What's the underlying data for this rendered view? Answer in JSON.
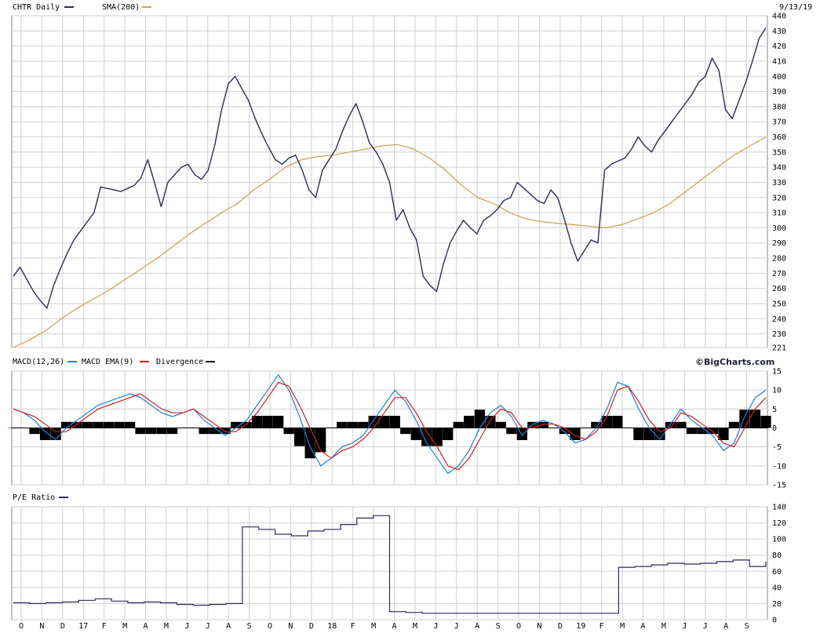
{
  "header": {
    "symbol_label": "CHTR Daily",
    "sma_label": "SMA(200)",
    "date_label": "9/13/19"
  },
  "macd_panel": {
    "macd_label": "MACD(12,26)",
    "ema_label": "MACD EMA(9)",
    "divergence_label": "Divergence",
    "brand": "©BigCharts.com"
  },
  "pe_panel": {
    "label": "P/E Ratio"
  },
  "colors": {
    "price": "#2b2b5c",
    "sma": "#c8a050",
    "macd": "#1e7fe0",
    "ema": "#d02020",
    "divergence": "#000000",
    "pe": "#2b2b5c",
    "grid": "#cfcfcf"
  },
  "chart_data": [
    {
      "type": "line",
      "panel": "price",
      "ylim": [
        221,
        440
      ],
      "y_ticks": [
        "440",
        "430",
        "420",
        "410",
        "400",
        "390",
        "380",
        "370",
        "360",
        "350",
        "340",
        "330",
        "320",
        "310",
        "300",
        "290",
        "280",
        "270",
        "260",
        "250",
        "240",
        "230",
        "221"
      ],
      "x_labels": [
        "O",
        "N",
        "D",
        "17",
        "F",
        "M",
        "A",
        "M",
        "J",
        "J",
        "A",
        "S",
        "O",
        "N",
        "D",
        "18",
        "F",
        "M",
        "A",
        "M",
        "J",
        "J",
        "A",
        "S",
        "O",
        "N",
        "D",
        "19",
        "F",
        "M",
        "A",
        "M",
        "J",
        "J",
        "A",
        "S"
      ],
      "series": [
        {
          "name": "CHTR Daily",
          "values": [
            268,
            274,
            266,
            258,
            252,
            247,
            262,
            273,
            283,
            292,
            298,
            304,
            310,
            327,
            326,
            325,
            324,
            326,
            328,
            333,
            345,
            330,
            314,
            330,
            335,
            340,
            342,
            335,
            332,
            338,
            355,
            378,
            395,
            400,
            392,
            384,
            372,
            362,
            353,
            345,
            342,
            346,
            348,
            338,
            325,
            320,
            338,
            345,
            352,
            364,
            374,
            382,
            370,
            356,
            350,
            342,
            330,
            305,
            312,
            300,
            292,
            268,
            262,
            258,
            276,
            290,
            298,
            305,
            300,
            296,
            305,
            308,
            312,
            318,
            320,
            330,
            326,
            322,
            318,
            316,
            325,
            320,
            306,
            290,
            278,
            285,
            292,
            290,
            338,
            342,
            344,
            346,
            352,
            360,
            354,
            350,
            358,
            364,
            370,
            376,
            382,
            388,
            396,
            400,
            412,
            404,
            378,
            372,
            384,
            396,
            410,
            425,
            432
          ]
        },
        {
          "name": "SMA(200)",
          "values": [
            221,
            226,
            232,
            240,
            247,
            253,
            259,
            266,
            273,
            280,
            288,
            296,
            303,
            310,
            316,
            325,
            332,
            340,
            345,
            347,
            348,
            350,
            352,
            354,
            355,
            352,
            346,
            338,
            328,
            320,
            316,
            310,
            306,
            304,
            303,
            302,
            301,
            300,
            302,
            306,
            310,
            316,
            324,
            332,
            340,
            348,
            354,
            360
          ]
        }
      ]
    },
    {
      "type": "line",
      "panel": "macd",
      "ylim": [
        -15,
        15
      ],
      "y_ticks": [
        "15",
        "10",
        "5",
        "0",
        "-5",
        "-10",
        "-15"
      ],
      "series": [
        {
          "name": "MACD(12,26)",
          "values": [
            5,
            4,
            2,
            -1,
            -3,
            0,
            2,
            4,
            6,
            7,
            8,
            9,
            8,
            6,
            4,
            3,
            4,
            5,
            2,
            0,
            -2,
            0,
            2,
            6,
            10,
            14,
            10,
            3,
            -5,
            -10,
            -8,
            -5,
            -4,
            -2,
            2,
            6,
            10,
            7,
            2,
            -4,
            -8,
            -12,
            -10,
            -6,
            0,
            4,
            6,
            3,
            -2,
            1,
            2,
            1,
            -1,
            -4,
            -3,
            0,
            5,
            12,
            11,
            5,
            0,
            -3,
            1,
            5,
            2,
            0,
            -2,
            -6,
            -4,
            3,
            8,
            10
          ]
        },
        {
          "name": "MACD EMA(9)",
          "values": [
            5,
            4,
            3,
            1,
            -1,
            -1,
            1,
            3,
            5,
            6,
            7,
            8,
            9,
            7,
            5,
            4,
            4,
            5,
            3,
            1,
            -1,
            -1,
            1,
            4,
            8,
            12,
            11,
            6,
            0,
            -6,
            -8,
            -6,
            -5,
            -3,
            0,
            4,
            8,
            8,
            4,
            -1,
            -5,
            -10,
            -11,
            -8,
            -3,
            2,
            5,
            4,
            0,
            0,
            1,
            1,
            0,
            -2,
            -3,
            -1,
            3,
            10,
            11,
            7,
            2,
            -1,
            0,
            4,
            3,
            1,
            -1,
            -4,
            -5,
            0,
            5,
            8
          ]
        }
      ]
    },
    {
      "type": "line",
      "panel": "pe",
      "ylim": [
        0,
        140
      ],
      "y_ticks": [
        "140",
        "120",
        "100",
        "80",
        "60",
        "40",
        "20",
        "0"
      ],
      "series": [
        {
          "name": "P/E Ratio",
          "values": [
            21,
            20,
            21,
            22,
            24,
            26,
            23,
            21,
            22,
            21,
            19,
            18,
            19,
            20,
            115,
            112,
            106,
            104,
            110,
            112,
            118,
            126,
            129,
            10,
            9,
            8,
            8,
            8,
            8,
            8,
            8,
            8,
            8,
            8,
            8,
            8,
            8,
            65,
            66,
            68,
            70,
            69,
            70,
            72,
            74,
            66,
            72
          ]
        }
      ]
    }
  ]
}
